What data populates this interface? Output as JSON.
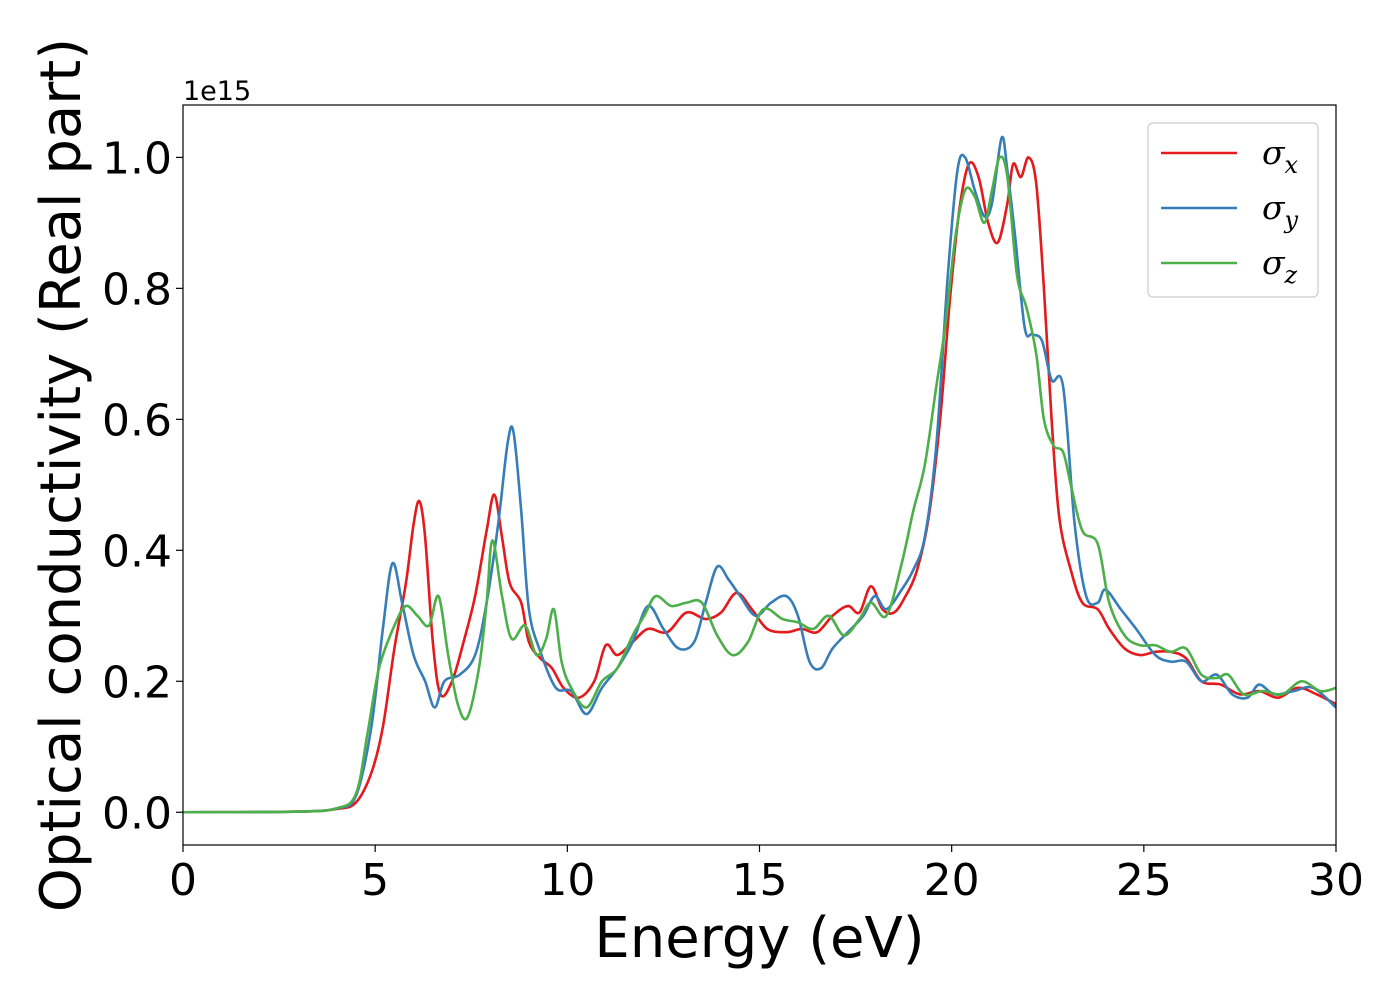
{
  "chart_data": {
    "type": "line",
    "xlabel": "Energy (eV)",
    "ylabel": "Optical conductivity (Real part)",
    "y_offset_label": "1e15",
    "xlim": [
      0,
      30
    ],
    "ylim": [
      -0.05,
      1.08
    ],
    "x_ticks": [
      0,
      5,
      10,
      15,
      20,
      25,
      30
    ],
    "x_tick_labels": [
      "0",
      "5",
      "10",
      "15",
      "20",
      "25",
      "30"
    ],
    "y_ticks": [
      0.0,
      0.2,
      0.4,
      0.6,
      0.8,
      1.0
    ],
    "y_tick_labels": [
      "0.0",
      "0.2",
      "0.4",
      "0.6",
      "0.8",
      "1.0"
    ],
    "grid": false,
    "legend_position": "top-right",
    "series": [
      {
        "name": "σx",
        "label_base": "σ",
        "label_sub": "x",
        "color": "#e41a1c",
        "points": [
          [
            0,
            0
          ],
          [
            3,
            0.001
          ],
          [
            4,
            0.005
          ],
          [
            4.5,
            0.015
          ],
          [
            4.9,
            0.06
          ],
          [
            5.2,
            0.13
          ],
          [
            5.5,
            0.25
          ],
          [
            5.8,
            0.35
          ],
          [
            6.0,
            0.44
          ],
          [
            6.15,
            0.475
          ],
          [
            6.3,
            0.42
          ],
          [
            6.5,
            0.26
          ],
          [
            6.7,
            0.18
          ],
          [
            7.0,
            0.2
          ],
          [
            7.3,
            0.26
          ],
          [
            7.6,
            0.33
          ],
          [
            7.9,
            0.43
          ],
          [
            8.1,
            0.485
          ],
          [
            8.3,
            0.42
          ],
          [
            8.5,
            0.35
          ],
          [
            8.8,
            0.32
          ],
          [
            9.0,
            0.26
          ],
          [
            9.3,
            0.235
          ],
          [
            9.6,
            0.22
          ],
          [
            9.9,
            0.19
          ],
          [
            10.3,
            0.175
          ],
          [
            10.7,
            0.2
          ],
          [
            11.0,
            0.255
          ],
          [
            11.3,
            0.24
          ],
          [
            11.7,
            0.26
          ],
          [
            12.1,
            0.28
          ],
          [
            12.6,
            0.275
          ],
          [
            13.1,
            0.305
          ],
          [
            13.6,
            0.295
          ],
          [
            14.0,
            0.305
          ],
          [
            14.4,
            0.335
          ],
          [
            14.8,
            0.31
          ],
          [
            15.2,
            0.28
          ],
          [
            15.7,
            0.275
          ],
          [
            16.1,
            0.28
          ],
          [
            16.5,
            0.275
          ],
          [
            16.9,
            0.3
          ],
          [
            17.3,
            0.315
          ],
          [
            17.6,
            0.305
          ],
          [
            17.9,
            0.345
          ],
          [
            18.2,
            0.31
          ],
          [
            18.5,
            0.305
          ],
          [
            18.8,
            0.33
          ],
          [
            19.1,
            0.37
          ],
          [
            19.4,
            0.45
          ],
          [
            19.7,
            0.6
          ],
          [
            19.95,
            0.78
          ],
          [
            20.2,
            0.92
          ],
          [
            20.45,
            0.99
          ],
          [
            20.7,
            0.97
          ],
          [
            20.95,
            0.9
          ],
          [
            21.2,
            0.87
          ],
          [
            21.45,
            0.93
          ],
          [
            21.6,
            0.99
          ],
          [
            21.8,
            0.97
          ],
          [
            22.0,
            1.0
          ],
          [
            22.2,
            0.96
          ],
          [
            22.4,
            0.8
          ],
          [
            22.6,
            0.6
          ],
          [
            22.8,
            0.45
          ],
          [
            23.1,
            0.37
          ],
          [
            23.4,
            0.32
          ],
          [
            23.8,
            0.31
          ],
          [
            24.1,
            0.28
          ],
          [
            24.5,
            0.25
          ],
          [
            24.9,
            0.24
          ],
          [
            25.3,
            0.245
          ],
          [
            25.7,
            0.245
          ],
          [
            26.1,
            0.235
          ],
          [
            26.5,
            0.2
          ],
          [
            27.0,
            0.195
          ],
          [
            27.5,
            0.18
          ],
          [
            28.0,
            0.185
          ],
          [
            28.5,
            0.175
          ],
          [
            29.0,
            0.19
          ],
          [
            29.5,
            0.18
          ],
          [
            30.0,
            0.165
          ]
        ]
      },
      {
        "name": "σy",
        "label_base": "σ",
        "label_sub": "y",
        "color": "#377eb8",
        "points": [
          [
            0,
            0
          ],
          [
            3,
            0.001
          ],
          [
            4,
            0.006
          ],
          [
            4.5,
            0.025
          ],
          [
            4.9,
            0.13
          ],
          [
            5.2,
            0.28
          ],
          [
            5.45,
            0.38
          ],
          [
            5.7,
            0.32
          ],
          [
            6.0,
            0.24
          ],
          [
            6.3,
            0.2
          ],
          [
            6.55,
            0.16
          ],
          [
            6.8,
            0.2
          ],
          [
            7.2,
            0.21
          ],
          [
            7.6,
            0.24
          ],
          [
            7.9,
            0.32
          ],
          [
            8.2,
            0.44
          ],
          [
            8.45,
            0.565
          ],
          [
            8.6,
            0.58
          ],
          [
            8.8,
            0.46
          ],
          [
            9.0,
            0.31
          ],
          [
            9.3,
            0.245
          ],
          [
            9.7,
            0.19
          ],
          [
            10.1,
            0.185
          ],
          [
            10.5,
            0.15
          ],
          [
            10.9,
            0.19
          ],
          [
            11.3,
            0.22
          ],
          [
            11.7,
            0.26
          ],
          [
            12.1,
            0.315
          ],
          [
            12.5,
            0.28
          ],
          [
            12.9,
            0.25
          ],
          [
            13.3,
            0.26
          ],
          [
            13.6,
            0.32
          ],
          [
            13.9,
            0.375
          ],
          [
            14.2,
            0.355
          ],
          [
            14.5,
            0.33
          ],
          [
            14.9,
            0.3
          ],
          [
            15.3,
            0.32
          ],
          [
            15.7,
            0.33
          ],
          [
            16.0,
            0.3
          ],
          [
            16.3,
            0.23
          ],
          [
            16.6,
            0.22
          ],
          [
            16.9,
            0.25
          ],
          [
            17.3,
            0.275
          ],
          [
            17.7,
            0.3
          ],
          [
            18.0,
            0.33
          ],
          [
            18.3,
            0.31
          ],
          [
            18.7,
            0.34
          ],
          [
            19.0,
            0.37
          ],
          [
            19.3,
            0.42
          ],
          [
            19.6,
            0.56
          ],
          [
            19.9,
            0.82
          ],
          [
            20.15,
            0.98
          ],
          [
            20.35,
            1.0
          ],
          [
            20.6,
            0.95
          ],
          [
            20.85,
            0.91
          ],
          [
            21.05,
            0.93
          ],
          [
            21.3,
            1.03
          ],
          [
            21.45,
            0.98
          ],
          [
            21.65,
            0.88
          ],
          [
            21.9,
            0.74
          ],
          [
            22.1,
            0.73
          ],
          [
            22.35,
            0.72
          ],
          [
            22.6,
            0.66
          ],
          [
            22.9,
            0.65
          ],
          [
            23.2,
            0.44
          ],
          [
            23.5,
            0.33
          ],
          [
            23.8,
            0.32
          ],
          [
            24.0,
            0.34
          ],
          [
            24.4,
            0.31
          ],
          [
            24.8,
            0.28
          ],
          [
            25.3,
            0.24
          ],
          [
            25.7,
            0.23
          ],
          [
            26.1,
            0.23
          ],
          [
            26.5,
            0.2
          ],
          [
            26.9,
            0.21
          ],
          [
            27.3,
            0.18
          ],
          [
            27.7,
            0.175
          ],
          [
            28.0,
            0.195
          ],
          [
            28.4,
            0.18
          ],
          [
            28.9,
            0.185
          ],
          [
            29.4,
            0.19
          ],
          [
            30.0,
            0.16
          ]
        ]
      },
      {
        "name": "σz",
        "label_base": "σ",
        "label_sub": "z",
        "color": "#4daf4a",
        "points": [
          [
            0,
            0
          ],
          [
            3,
            0.001
          ],
          [
            4,
            0.006
          ],
          [
            4.5,
            0.028
          ],
          [
            4.8,
            0.12
          ],
          [
            5.1,
            0.22
          ],
          [
            5.5,
            0.285
          ],
          [
            5.8,
            0.315
          ],
          [
            6.1,
            0.3
          ],
          [
            6.4,
            0.285
          ],
          [
            6.65,
            0.33
          ],
          [
            6.9,
            0.24
          ],
          [
            7.15,
            0.165
          ],
          [
            7.4,
            0.145
          ],
          [
            7.7,
            0.22
          ],
          [
            7.9,
            0.32
          ],
          [
            8.05,
            0.415
          ],
          [
            8.3,
            0.33
          ],
          [
            8.55,
            0.265
          ],
          [
            8.9,
            0.285
          ],
          [
            9.2,
            0.24
          ],
          [
            9.45,
            0.265
          ],
          [
            9.65,
            0.31
          ],
          [
            9.85,
            0.23
          ],
          [
            10.1,
            0.19
          ],
          [
            10.5,
            0.16
          ],
          [
            10.9,
            0.2
          ],
          [
            11.3,
            0.22
          ],
          [
            11.7,
            0.27
          ],
          [
            12.0,
            0.3
          ],
          [
            12.3,
            0.33
          ],
          [
            12.7,
            0.315
          ],
          [
            13.1,
            0.32
          ],
          [
            13.5,
            0.32
          ],
          [
            13.9,
            0.27
          ],
          [
            14.3,
            0.24
          ],
          [
            14.7,
            0.26
          ],
          [
            15.1,
            0.31
          ],
          [
            15.6,
            0.295
          ],
          [
            16.0,
            0.29
          ],
          [
            16.4,
            0.28
          ],
          [
            16.8,
            0.3
          ],
          [
            17.2,
            0.27
          ],
          [
            17.6,
            0.295
          ],
          [
            17.9,
            0.32
          ],
          [
            18.3,
            0.3
          ],
          [
            18.7,
            0.38
          ],
          [
            19.0,
            0.46
          ],
          [
            19.3,
            0.53
          ],
          [
            19.6,
            0.65
          ],
          [
            19.85,
            0.75
          ],
          [
            20.1,
            0.88
          ],
          [
            20.35,
            0.95
          ],
          [
            20.6,
            0.94
          ],
          [
            20.85,
            0.9
          ],
          [
            21.05,
            0.95
          ],
          [
            21.25,
            1.0
          ],
          [
            21.45,
            0.97
          ],
          [
            21.7,
            0.82
          ],
          [
            21.95,
            0.77
          ],
          [
            22.2,
            0.7
          ],
          [
            22.4,
            0.6
          ],
          [
            22.65,
            0.56
          ],
          [
            22.9,
            0.55
          ],
          [
            23.1,
            0.5
          ],
          [
            23.4,
            0.43
          ],
          [
            23.8,
            0.41
          ],
          [
            24.1,
            0.32
          ],
          [
            24.5,
            0.27
          ],
          [
            24.9,
            0.255
          ],
          [
            25.3,
            0.255
          ],
          [
            25.7,
            0.245
          ],
          [
            26.1,
            0.25
          ],
          [
            26.5,
            0.21
          ],
          [
            26.9,
            0.205
          ],
          [
            27.2,
            0.21
          ],
          [
            27.6,
            0.18
          ],
          [
            28.1,
            0.185
          ],
          [
            28.6,
            0.18
          ],
          [
            29.1,
            0.2
          ],
          [
            29.6,
            0.185
          ],
          [
            30.0,
            0.19
          ]
        ]
      }
    ]
  }
}
